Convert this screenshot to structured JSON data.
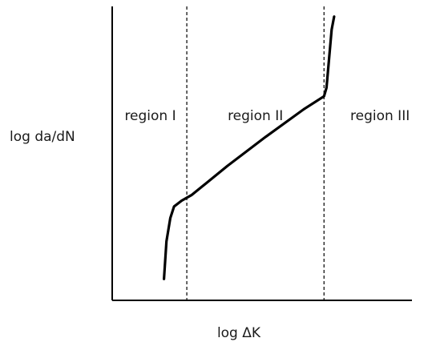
{
  "chart_data": {
    "type": "line",
    "title": "",
    "xlabel": "log ΔK",
    "ylabel": "log da/dN",
    "xlim": [
      0,
      100
    ],
    "ylim": [
      0,
      100
    ],
    "grid": false,
    "ticks": false,
    "region_boundaries": [
      24,
      78
    ],
    "regions": [
      {
        "label": "region I"
      },
      {
        "label": "region II"
      },
      {
        "label": "region III"
      }
    ],
    "series": [
      {
        "color": "#000000",
        "points": [
          [
            15,
            6
          ],
          [
            16,
            19
          ],
          [
            17.5,
            27
          ],
          [
            19,
            31
          ],
          [
            22,
            33
          ],
          [
            26,
            35
          ],
          [
            40,
            45
          ],
          [
            55,
            55
          ],
          [
            70,
            64.5
          ],
          [
            78,
            69
          ],
          [
            79,
            72
          ],
          [
            80,
            82
          ],
          [
            81,
            92
          ],
          [
            82,
            96.5
          ]
        ]
      }
    ]
  }
}
